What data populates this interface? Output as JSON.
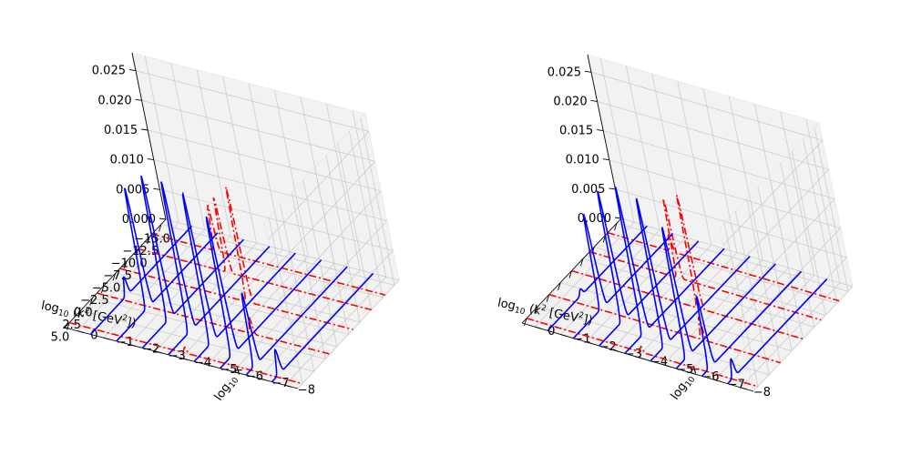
{
  "chart_data": [
    {
      "type": "line",
      "panel": "left",
      "xlabel_prefix": "log",
      "xlabel_sub": "10",
      "xlabel_open": " (k",
      "xlabel_sup": "2",
      "xlabel_unit": " [GeV",
      "xlabel_unit_sup": "2",
      "xlabel_close": "])",
      "ylabel_prefix": "log",
      "ylabel_sub": "10",
      "ylabel_var": " x",
      "k_ticks": [
        "−15.0",
        "−12.5",
        "−10.0",
        "−7.5",
        "−5.0",
        "−2.5",
        "0.0",
        "2.5",
        "5.0"
      ],
      "x_ticks": [
        "0",
        "−1",
        "−2",
        "−3",
        "−4",
        "−5",
        "−6",
        "−7",
        "−8"
      ],
      "z_ticks": [
        "0.000",
        "0.005",
        "0.010",
        "0.015",
        "0.020",
        "0.025"
      ],
      "k_range": [
        -16,
        6
      ],
      "x_range": [
        0.5,
        -8.5
      ],
      "z_range": [
        0,
        0.028
      ],
      "grid": true,
      "blue_series": [
        {
          "logx": -0.5,
          "peak_k": -2.0,
          "peak": 0.003
        },
        {
          "logx": -1.5,
          "peak_k": -1.0,
          "peak": 0.02
        },
        {
          "logx": -2.5,
          "peak_k": 0.0,
          "peak": 0.024
        },
        {
          "logx": -3.5,
          "peak_k": 1.0,
          "peak": 0.025
        },
        {
          "logx": -4.5,
          "peak_k": 2.0,
          "peak": 0.025
        },
        {
          "logx": -5.5,
          "peak_k": 3.0,
          "peak": 0.023
        },
        {
          "logx": -6.5,
          "peak_k": 3.8,
          "peak": 0.012
        },
        {
          "logx": -7.5,
          "peak_k": 4.3,
          "peak": 0.004
        }
      ],
      "red_series": [
        {
          "k": -13.0,
          "peak_logx": -2.0,
          "peak": 0.008
        },
        {
          "k": -10.0,
          "peak_logx": -3.0,
          "peak": 0.013
        },
        {
          "k": -6.0,
          "peak_logx": -4.5,
          "peak": 0.02
        },
        {
          "k": -1.0,
          "peak_logx": -5.5,
          "peak": 0.003
        },
        {
          "k": 5.0,
          "peak_logx": -4.0,
          "peak": 0.001
        }
      ]
    },
    {
      "type": "line",
      "panel": "right",
      "xlabel_prefix": "log",
      "xlabel_sub": "10",
      "xlabel_open": " (k",
      "xlabel_sup": "2",
      "xlabel_unit": " [GeV",
      "xlabel_unit_sup": "2",
      "xlabel_close": "])",
      "ylabel_prefix": "log",
      "ylabel_sub": "10",
      "ylabel_var": " x",
      "k_ticks": [
        "",
        "",
        "",
        "",
        "",
        "",
        "",
        "",
        ""
      ],
      "x_ticks": [
        "0",
        "−1",
        "−2",
        "−3",
        "−4",
        "−5",
        "−6",
        "−7",
        "−8"
      ],
      "z_ticks": [
        "0.000",
        "0.005",
        "0.010",
        "0.015",
        "0.020",
        "0.025"
      ],
      "k_range": [
        -16,
        6
      ],
      "x_range": [
        0.5,
        -8.5
      ],
      "z_range": [
        0,
        0.028
      ],
      "grid": true,
      "blue_series": [
        {
          "logx": -0.5,
          "peak_k": -1.5,
          "peak": 0.001
        },
        {
          "logx": -1.5,
          "peak_k": -0.5,
          "peak": 0.016
        },
        {
          "logx": -2.5,
          "peak_k": 0.5,
          "peak": 0.022
        },
        {
          "logx": -3.5,
          "peak_k": 1.5,
          "peak": 0.025
        },
        {
          "logx": -4.5,
          "peak_k": 2.5,
          "peak": 0.025
        },
        {
          "logx": -5.5,
          "peak_k": 3.3,
          "peak": 0.022
        },
        {
          "logx": -6.5,
          "peak_k": 4.0,
          "peak": 0.012
        },
        {
          "logx": -7.5,
          "peak_k": 4.5,
          "peak": 0.003
        }
      ],
      "red_series": [
        {
          "k": -13.0,
          "peak_logx": -2.0,
          "peak": 0.003
        },
        {
          "k": -9.0,
          "peak_logx": -3.0,
          "peak": 0.014
        },
        {
          "k": -5.0,
          "peak_logx": -4.5,
          "peak": 0.02
        },
        {
          "k": 0.0,
          "peak_logx": -5.5,
          "peak": 0.004
        },
        {
          "k": 5.0,
          "peak_logx": -4.0,
          "peak": 0.001
        }
      ]
    }
  ],
  "colors": {
    "blue": "#0000ff",
    "red": "#ff0000",
    "pane": "#f2f2f2",
    "grid": "#cccccc"
  }
}
